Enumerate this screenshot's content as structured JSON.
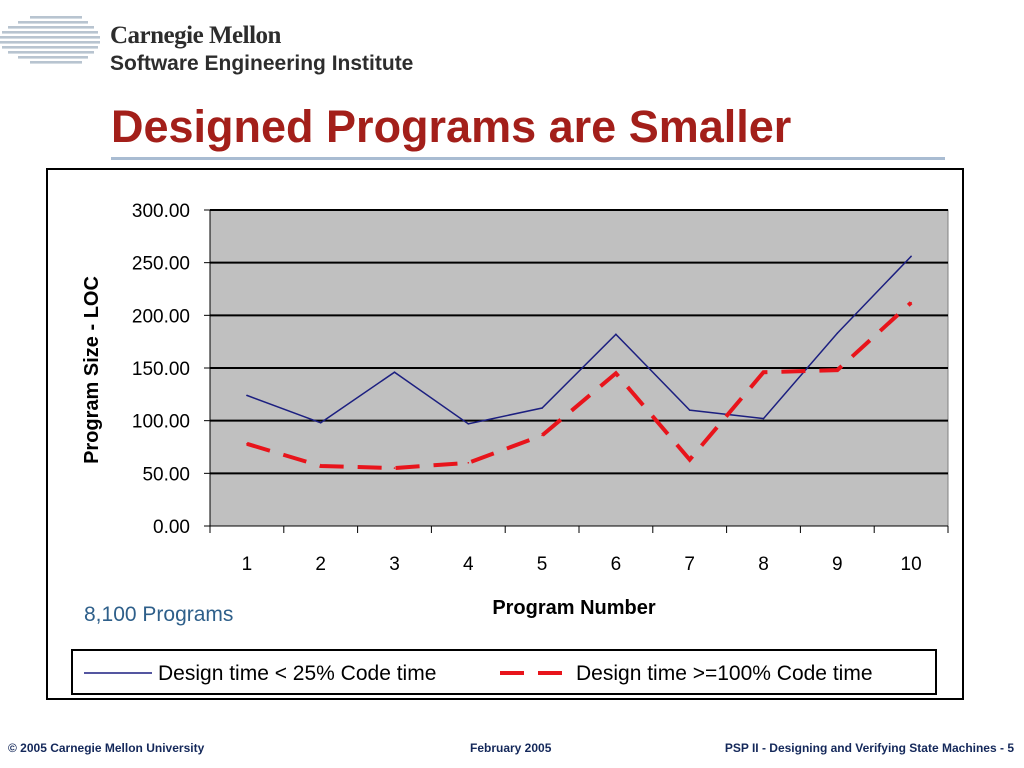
{
  "header": {
    "org_name": "Carnegie Mellon",
    "org_unit": "Software Engineering Institute",
    "title": "Designed Programs are Smaller"
  },
  "note": "8,100 Programs",
  "footer": {
    "copyright": "© 2005 Carnegie Mellon University",
    "date": "February 2005",
    "course": "PSP II - Designing and Verifying State Machines - 5"
  },
  "colors": {
    "title": "#a31f1a",
    "plot_background": "#c0c0c0",
    "series_1": "#1c1f80",
    "series_2": "#e8141b"
  },
  "chart_data": {
    "type": "line",
    "x": [
      1,
      2,
      3,
      4,
      5,
      6,
      7,
      8,
      9,
      10
    ],
    "categories": [
      "1",
      "2",
      "3",
      "4",
      "5",
      "6",
      "7",
      "8",
      "9",
      "10"
    ],
    "series": [
      {
        "name": "Design time < 25% Code time",
        "values": [
          124,
          98,
          146,
          97,
          112,
          182,
          110,
          102,
          183,
          256
        ]
      },
      {
        "name": "Design time >=100% Code time",
        "values": [
          78,
          57,
          55,
          60,
          86,
          145,
          63,
          146,
          148,
          212
        ]
      }
    ],
    "xlabel": "Program Number",
    "ylabel": "Program Size - LOC",
    "ylim": [
      0,
      300
    ],
    "yticks": [
      "0.00",
      "50.00",
      "100.00",
      "150.00",
      "200.00",
      "250.00",
      "300.00"
    ],
    "grid": true,
    "legend_position": "bottom"
  }
}
